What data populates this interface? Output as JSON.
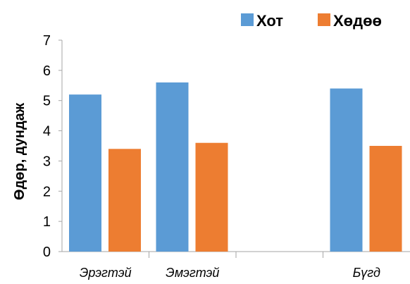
{
  "chart_data": {
    "type": "bar",
    "categories": [
      "Эрэгтэй",
      "Эмэгтэй",
      "",
      "Бүгд"
    ],
    "series": [
      {
        "name": "Хот",
        "values": [
          5.2,
          5.6,
          null,
          5.4
        ],
        "color": "#5b9bd5"
      },
      {
        "name": "Хөдөө",
        "values": [
          3.4,
          3.6,
          null,
          3.5
        ],
        "color": "#ed7d31"
      }
    ],
    "ylabel": "Өдөр, дундаж",
    "xlabel": "",
    "ylim": [
      0,
      7
    ],
    "yticks": [
      "0",
      "1",
      "2",
      "3",
      "4",
      "5",
      "6",
      "7"
    ],
    "legend_position": "top-right",
    "grid": false
  }
}
